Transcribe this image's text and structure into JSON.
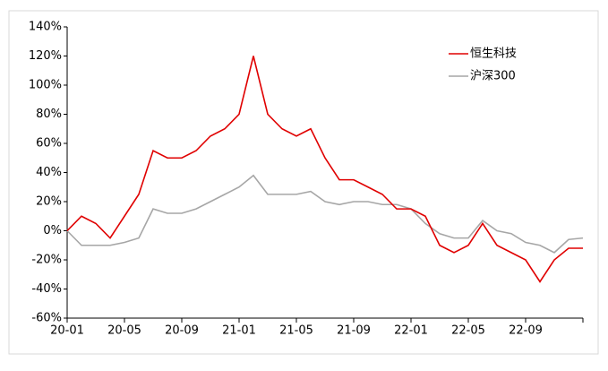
{
  "chart_data": {
    "type": "line",
    "x": [
      "20-01",
      "20-02",
      "20-03",
      "20-04",
      "20-05",
      "20-06",
      "20-07",
      "20-08",
      "20-09",
      "20-10",
      "20-11",
      "20-12",
      "21-01",
      "21-02",
      "21-03",
      "21-04",
      "21-05",
      "21-06",
      "21-07",
      "21-08",
      "21-09",
      "21-10",
      "21-11",
      "21-12",
      "22-01",
      "22-02",
      "22-03",
      "22-04",
      "22-05",
      "22-06",
      "22-07",
      "22-08",
      "22-09",
      "22-10",
      "22-11",
      "22-12",
      "23-01"
    ],
    "xticks": [
      "20-01",
      "20-05",
      "20-09",
      "21-01",
      "21-05",
      "21-09",
      "22-01",
      "22-05",
      "22-09"
    ],
    "series": [
      {
        "name": "恒生科技",
        "color": "#e00000",
        "values": [
          0,
          10,
          5,
          -5,
          10,
          25,
          55,
          50,
          50,
          55,
          65,
          70,
          80,
          120,
          80,
          70,
          65,
          70,
          50,
          35,
          35,
          30,
          25,
          15,
          15,
          10,
          -10,
          -15,
          -10,
          5,
          -10,
          -15,
          -20,
          -35,
          -20,
          -12,
          -12
        ]
      },
      {
        "name": "沪深300",
        "color": "#a6a6a6",
        "values": [
          0,
          -10,
          -10,
          -10,
          -8,
          -5,
          15,
          12,
          12,
          15,
          20,
          25,
          30,
          38,
          25,
          25,
          25,
          27,
          20,
          18,
          20,
          20,
          18,
          18,
          15,
          5,
          -2,
          -5,
          -5,
          7,
          0,
          -2,
          -8,
          -10,
          -15,
          -6,
          -5
        ]
      }
    ],
    "ylim": [
      -60,
      140
    ],
    "yticks": [
      {
        "value": -60,
        "label": "-60%"
      },
      {
        "value": -40,
        "label": "-40%"
      },
      {
        "value": -20,
        "label": "-20%"
      },
      {
        "value": 0,
        "label": "0%"
      },
      {
        "value": 20,
        "label": "20%"
      },
      {
        "value": 40,
        "label": "40%"
      },
      {
        "value": 60,
        "label": "60%"
      },
      {
        "value": 80,
        "label": "80%"
      },
      {
        "value": 100,
        "label": "100%"
      },
      {
        "value": 120,
        "label": "120%"
      },
      {
        "value": 140,
        "label": "140%"
      }
    ],
    "legend": "upper right"
  }
}
